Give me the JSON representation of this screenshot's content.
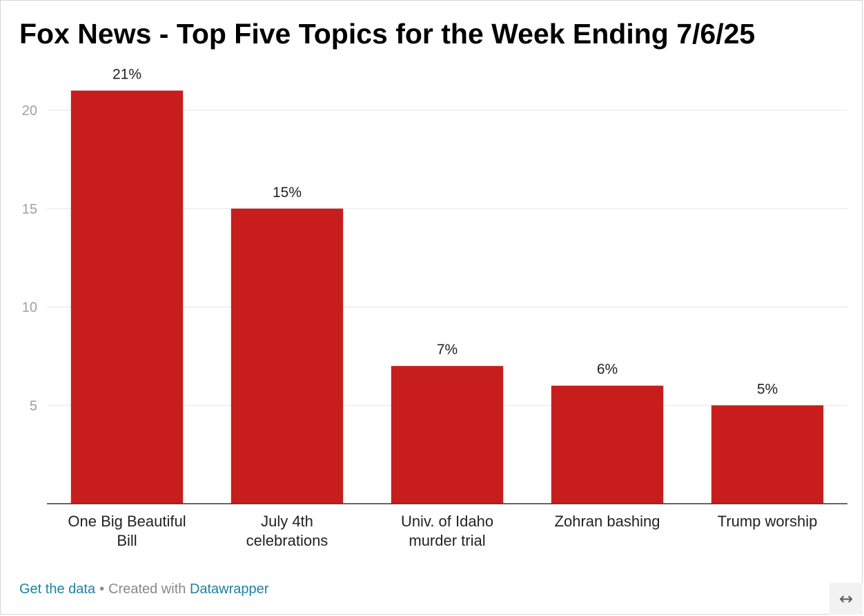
{
  "chart_data": {
    "type": "bar",
    "title": "Fox News - Top Five Topics for the Week Ending 7/6/25",
    "categories": [
      [
        "One Big Beautiful",
        "Bill"
      ],
      [
        "July 4th",
        "celebrations"
      ],
      [
        "Univ. of Idaho",
        "murder trial"
      ],
      [
        "Zohran bashing"
      ],
      [
        "Trump worship"
      ]
    ],
    "values": [
      21,
      15,
      7,
      6,
      5
    ],
    "data_labels": [
      "21%",
      "15%",
      "7%",
      "6%",
      "5%"
    ],
    "ylim": [
      0,
      21
    ],
    "yticks": [
      5,
      10,
      15,
      20
    ],
    "grid": true,
    "bar_color": "#c71e1d",
    "xlabel": "",
    "ylabel": ""
  },
  "footer": {
    "get_data": "Get the data",
    "separator": "•",
    "created_with": "Created with",
    "datawrapper": "Datawrapper"
  },
  "expand_icon": "left-right-arrow-icon"
}
